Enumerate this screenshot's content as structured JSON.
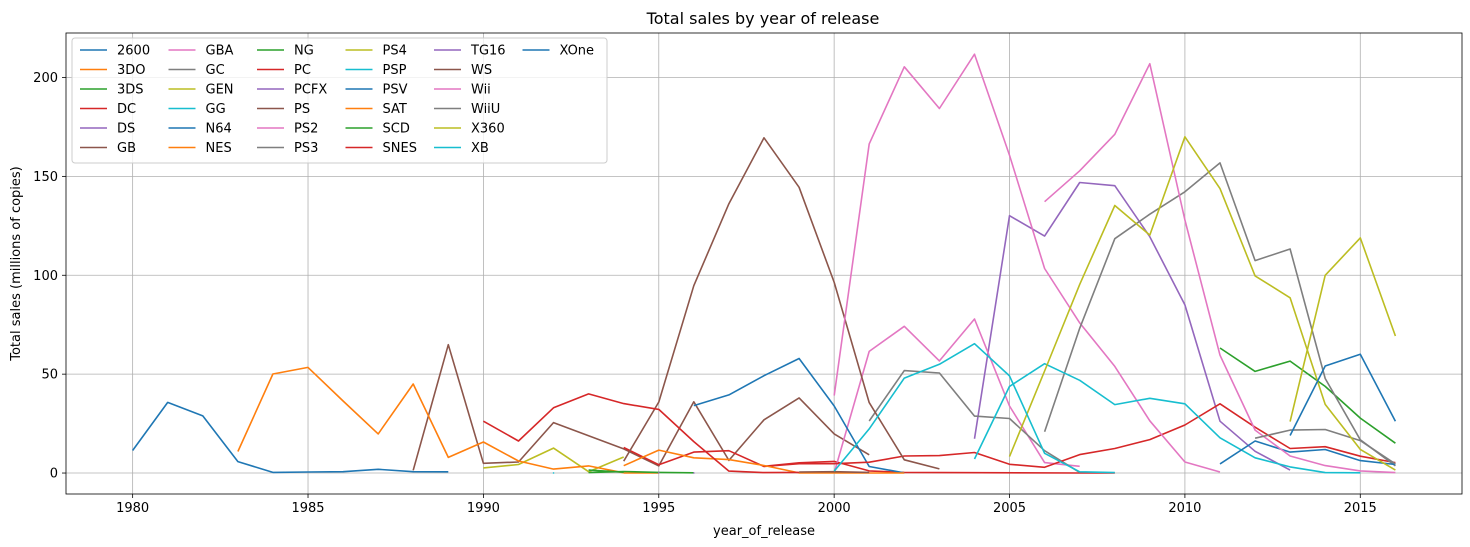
{
  "chart_data": {
    "type": "line",
    "title": "Total sales by year of release",
    "xlabel": "year_of_release",
    "ylabel": "Total sales (millions of copies)",
    "xlim": [
      1978.1,
      2017.9
    ],
    "ylim": [
      -10.6,
      222.5
    ],
    "xticks": [
      1980,
      1985,
      1990,
      1995,
      2000,
      2005,
      2010,
      2015
    ],
    "yticks": [
      0,
      50,
      100,
      150,
      200
    ],
    "grid": true,
    "legend_position": "upper-left",
    "legend_columns": 6,
    "series": [
      {
        "name": "2600",
        "color": "#1f77b4",
        "x": [
          1980,
          1981,
          1982,
          1983,
          1984,
          1985,
          1986,
          1987,
          1988,
          1989
        ],
        "y": [
          11.4,
          35.7,
          28.9,
          5.8,
          0.3,
          0.5,
          0.7,
          1.9,
          0.7,
          0.6
        ]
      },
      {
        "name": "3DO",
        "color": "#ff7f0e",
        "x": [
          1994,
          1995
        ],
        "y": [
          0.02,
          0.08
        ]
      },
      {
        "name": "3DS",
        "color": "#2ca02c",
        "x": [
          2011,
          2012,
          2013,
          2014,
          2015,
          2016
        ],
        "y": [
          63.2,
          51.4,
          56.6,
          43.8,
          27.8,
          15.1
        ]
      },
      {
        "name": "DC",
        "color": "#d62728",
        "x": [
          1998,
          1999,
          2000,
          2001,
          2002,
          2007,
          2008
        ],
        "y": [
          3.4,
          5.2,
          5.9,
          1.1,
          0.3,
          0.02,
          0.04
        ]
      },
      {
        "name": "DS",
        "color": "#9467bd",
        "x": [
          2004,
          2005,
          2006,
          2007,
          2008,
          2009,
          2010,
          2011,
          2012,
          2013
        ],
        "y": [
          17.3,
          130.1,
          119.8,
          146.9,
          145.3,
          119.5,
          85.0,
          26.2,
          11.0,
          1.5
        ]
      },
      {
        "name": "GB",
        "color": "#8c564b",
        "x": [
          1988,
          1989,
          1990,
          1991,
          1992,
          1994,
          1995,
          1996,
          1997,
          1998,
          1999,
          2000,
          2001
        ],
        "y": [
          1.4,
          64.9,
          4.9,
          5.6,
          25.5,
          12.2,
          3.6,
          36.0,
          6.4,
          26.9,
          38.0,
          19.8,
          9.2
        ]
      },
      {
        "name": "GBA",
        "color": "#e377c2",
        "x": [
          2000,
          2001,
          2002,
          2003,
          2004,
          2005,
          2006,
          2007
        ],
        "y": [
          0.07,
          61.5,
          74.2,
          56.7,
          77.9,
          33.9,
          5.3,
          3.4
        ]
      },
      {
        "name": "GC",
        "color": "#7f7f7f",
        "x": [
          2001,
          2002,
          2003,
          2004,
          2005,
          2006,
          2007
        ],
        "y": [
          26.3,
          51.8,
          50.6,
          28.8,
          27.6,
          11.3,
          0.3
        ]
      },
      {
        "name": "GEN",
        "color": "#bcbd22",
        "x": [
          1990,
          1991,
          1992,
          1993,
          1994
        ],
        "y": [
          2.6,
          4.3,
          12.6,
          0.7,
          8.1
        ]
      },
      {
        "name": "GG",
        "color": "#17becf",
        "x": [
          1992
        ],
        "y": [
          0.04
        ]
      },
      {
        "name": "N64",
        "color": "#1f77b4",
        "x": [
          1996,
          1997,
          1998,
          1999,
          2000,
          2001,
          2002
        ],
        "y": [
          34.1,
          39.5,
          49.2,
          57.9,
          33.9,
          3.3,
          0.08
        ]
      },
      {
        "name": "NES",
        "color": "#ff7f0e",
        "x": [
          1983,
          1984,
          1985,
          1986,
          1987,
          1988,
          1989,
          1990,
          1991,
          1992,
          1993,
          1994
        ],
        "y": [
          10.9,
          50.1,
          53.4,
          36.4,
          19.8,
          45.0,
          7.9,
          15.7,
          6.1,
          1.98,
          3.6,
          0.1
        ]
      },
      {
        "name": "NG",
        "color": "#2ca02c",
        "x": [
          1993,
          1994,
          1995,
          1996
        ],
        "y": [
          0.2,
          0.8,
          0.3,
          0.1
        ]
      },
      {
        "name": "PC",
        "color": "#d62728",
        "x": [
          1994,
          1995,
          1996,
          1997,
          1998,
          1999,
          2000,
          2001,
          2002,
          2003,
          2004,
          2005,
          2006,
          2007,
          2008,
          2009,
          2010,
          2011,
          2012,
          2013,
          2014,
          2015,
          2016
        ],
        "y": [
          12.9,
          4.2,
          10.6,
          11.3,
          3.3,
          4.7,
          4.7,
          5.5,
          8.6,
          8.8,
          10.4,
          4.4,
          2.9,
          9.3,
          12.4,
          16.9,
          24.3,
          35.0,
          23.2,
          12.4,
          13.3,
          8.5,
          5.3
        ]
      },
      {
        "name": "PCFX",
        "color": "#9467bd",
        "x": [
          1996
        ],
        "y": [
          0.03
        ]
      },
      {
        "name": "PS",
        "color": "#8c564b",
        "x": [
          1994,
          1995,
          1996,
          1997,
          1998,
          1999,
          2000,
          2001,
          2002,
          2003
        ],
        "y": [
          6.0,
          35.9,
          94.7,
          136.2,
          169.5,
          144.5,
          96.4,
          35.6,
          6.7,
          2.1
        ]
      },
      {
        "name": "PS2",
        "color": "#e377c2",
        "x": [
          2000,
          2001,
          2002,
          2003,
          2004,
          2005,
          2006,
          2007,
          2008,
          2009,
          2010,
          2011
        ],
        "y": [
          39.2,
          166.4,
          205.4,
          184.3,
          211.8,
          160.7,
          103.4,
          75.9,
          53.9,
          26.4,
          5.6,
          0.5
        ]
      },
      {
        "name": "PS3",
        "color": "#7f7f7f",
        "x": [
          2006,
          2007,
          2008,
          2009,
          2010,
          2011,
          2012,
          2013,
          2014,
          2015,
          2016
        ],
        "y": [
          20.9,
          73.2,
          118.5,
          130.9,
          142.2,
          156.8,
          107.4,
          113.3,
          47.8,
          16.8,
          3.6
        ]
      },
      {
        "name": "PS4",
        "color": "#bcbd22",
        "x": [
          2013,
          2014,
          2015,
          2016
        ],
        "y": [
          25.99,
          100.0,
          118.9,
          69.3
        ]
      },
      {
        "name": "PSP",
        "color": "#17becf",
        "x": [
          2004,
          2005,
          2006,
          2007,
          2008,
          2009,
          2010,
          2011,
          2012,
          2013,
          2014,
          2015
        ],
        "y": [
          7.1,
          43.8,
          55.3,
          46.9,
          34.6,
          37.8,
          35.0,
          17.8,
          7.7,
          3.1,
          0.2,
          0.1
        ]
      },
      {
        "name": "PSV",
        "color": "#1f77b4",
        "x": [
          2011,
          2012,
          2013,
          2014,
          2015,
          2016
        ],
        "y": [
          4.6,
          16.2,
          10.6,
          11.9,
          6.3,
          4.3
        ]
      },
      {
        "name": "SAT",
        "color": "#ff7f0e",
        "x": [
          1994,
          1995,
          1996,
          1997,
          1998,
          1999,
          2000,
          2001,
          2002
        ],
        "y": [
          3.7,
          11.6,
          7.7,
          6.8,
          3.8,
          0.09,
          0.02,
          0.03,
          0.01
        ]
      },
      {
        "name": "SCD",
        "color": "#2ca02c",
        "x": [
          1993,
          1994
        ],
        "y": [
          1.5,
          0.4
        ]
      },
      {
        "name": "SNES",
        "color": "#d62728",
        "x": [
          1990,
          1991,
          1992,
          1993,
          1994,
          1995,
          1996,
          1997,
          1998,
          1999
        ],
        "y": [
          26.2,
          16.2,
          32.98,
          40.0,
          35.1,
          32.2,
          15.9,
          0.99,
          0.2,
          0.3
        ]
      },
      {
        "name": "TG16",
        "color": "#9467bd",
        "x": [
          1995
        ],
        "y": [
          0.2
        ]
      },
      {
        "name": "WS",
        "color": "#8c564b",
        "x": [
          1999,
          2000,
          2001
        ],
        "y": [
          0.5,
          0.7,
          0.3
        ]
      },
      {
        "name": "Wii",
        "color": "#e377c2",
        "x": [
          2006,
          2007,
          2008,
          2009,
          2010,
          2011,
          2012,
          2013,
          2014,
          2015,
          2016
        ],
        "y": [
          137.2,
          152.8,
          171.3,
          206.97,
          127.95,
          59.6,
          21.7,
          8.6,
          3.75,
          1.1,
          0.2
        ]
      },
      {
        "name": "WiiU",
        "color": "#7f7f7f",
        "x": [
          2012,
          2013,
          2014,
          2015,
          2016
        ],
        "y": [
          17.6,
          21.7,
          22.0,
          16.4,
          4.6
        ]
      },
      {
        "name": "X360",
        "color": "#bcbd22",
        "x": [
          2005,
          2006,
          2007,
          2008,
          2009,
          2010,
          2011,
          2012,
          2013,
          2014,
          2015,
          2016
        ],
        "y": [
          8.3,
          51.6,
          95.4,
          135.3,
          120.3,
          170.0,
          143.8,
          99.7,
          88.6,
          34.7,
          11.96,
          1.5
        ]
      },
      {
        "name": "XB",
        "color": "#17becf",
        "x": [
          2000,
          2001,
          2002,
          2003,
          2004,
          2005,
          2006,
          2007,
          2008
        ],
        "y": [
          0.99,
          22.3,
          48.0,
          55.0,
          65.4,
          49.1,
          10.0,
          0.6,
          0.2
        ]
      },
      {
        "name": "XOne",
        "color": "#1f77b4",
        "x": [
          2013,
          2014,
          2015,
          2016
        ],
        "y": [
          18.96,
          54.1,
          60.1,
          26.2
        ]
      }
    ]
  }
}
